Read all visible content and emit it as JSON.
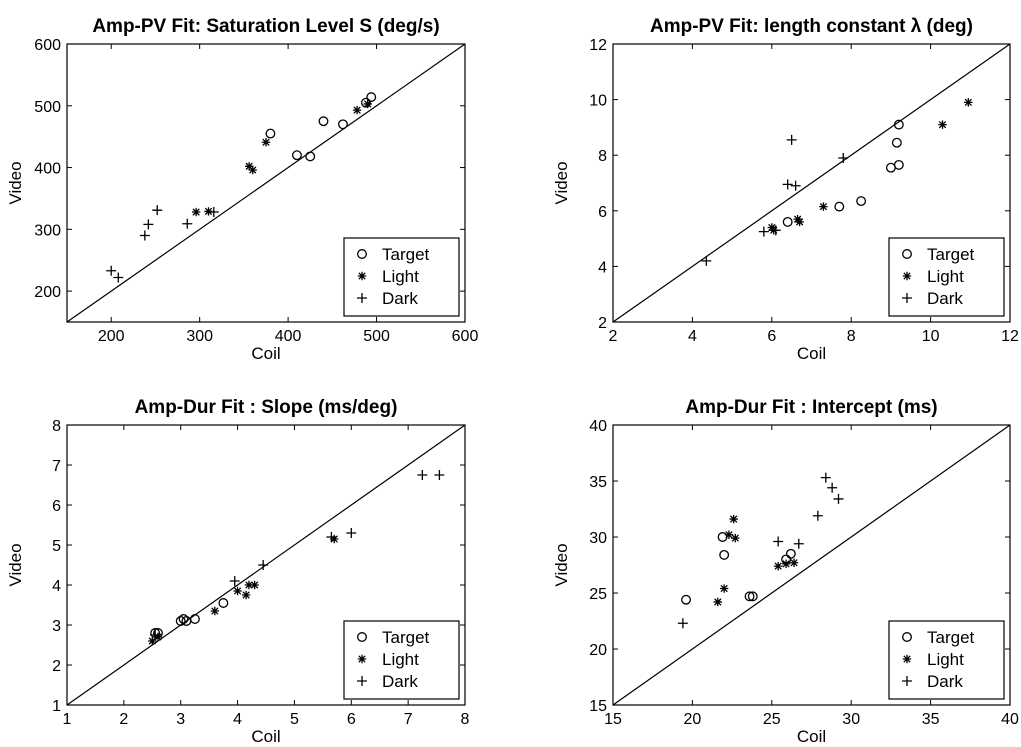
{
  "chart_data": [
    {
      "type": "scatter",
      "title": "Amp-PV Fit: Saturation Level S (deg/s)",
      "xlabel": "Coil",
      "ylabel": "Video",
      "xlim": [
        150,
        600
      ],
      "ylim": [
        150,
        600
      ],
      "xticks": [
        200,
        300,
        400,
        500,
        600
      ],
      "yticks": [
        200,
        300,
        400,
        500,
        600
      ],
      "identity_line": true,
      "legend_position": "bottom-right",
      "series": [
        {
          "name": "Target",
          "marker": "circle",
          "points": [
            [
              380,
              455
            ],
            [
              410,
              420
            ],
            [
              425,
              418
            ],
            [
              440,
              475
            ],
            [
              462,
              470
            ],
            [
              488,
              505
            ],
            [
              494,
              514
            ]
          ]
        },
        {
          "name": "Light",
          "marker": "star",
          "points": [
            [
              296,
              328
            ],
            [
              310,
              329
            ],
            [
              356,
              402
            ],
            [
              360,
              396
            ],
            [
              375,
              441
            ],
            [
              478,
              493
            ],
            [
              490,
              503
            ]
          ]
        },
        {
          "name": "Dark",
          "marker": "plus",
          "points": [
            [
              200,
              233
            ],
            [
              208,
              222
            ],
            [
              238,
              290
            ],
            [
              242,
              308
            ],
            [
              252,
              331
            ],
            [
              286,
              309
            ],
            [
              316,
              328
            ]
          ]
        }
      ]
    },
    {
      "type": "scatter",
      "title": "Amp-PV Fit: length constant λ (deg)",
      "xlabel": "Coil",
      "ylabel": "Video",
      "xlim": [
        2,
        12
      ],
      "ylim": [
        2,
        12
      ],
      "xticks": [
        2,
        4,
        6,
        8,
        10,
        12
      ],
      "yticks": [
        2,
        4,
        6,
        8,
        10,
        12
      ],
      "identity_line": true,
      "legend_position": "bottom-right",
      "series": [
        {
          "name": "Target",
          "marker": "circle",
          "points": [
            [
              6.4,
              5.6
            ],
            [
              7.7,
              6.15
            ],
            [
              8.25,
              6.35
            ],
            [
              9.0,
              7.55
            ],
            [
              9.2,
              7.65
            ],
            [
              9.15,
              8.45
            ],
            [
              9.2,
              9.1
            ]
          ]
        },
        {
          "name": "Light",
          "marker": "star",
          "points": [
            [
              6.0,
              5.4
            ],
            [
              6.05,
              5.3
            ],
            [
              6.65,
              5.7
            ],
            [
              6.7,
              5.6
            ],
            [
              7.3,
              6.15
            ],
            [
              10.3,
              9.1
            ],
            [
              10.95,
              9.9
            ]
          ]
        },
        {
          "name": "Dark",
          "marker": "plus",
          "points": [
            [
              4.35,
              4.2
            ],
            [
              5.8,
              5.25
            ],
            [
              6.1,
              5.3
            ],
            [
              6.4,
              6.95
            ],
            [
              6.6,
              6.9
            ],
            [
              6.5,
              8.55
            ],
            [
              7.8,
              7.9
            ]
          ]
        }
      ]
    },
    {
      "type": "scatter",
      "title": "Amp-Dur Fit : Slope (ms/deg)",
      "xlabel": "Coil",
      "ylabel": "Video",
      "xlim": [
        1,
        8
      ],
      "ylim": [
        1,
        8
      ],
      "xticks": [
        1,
        2,
        3,
        4,
        5,
        6,
        7,
        8
      ],
      "yticks": [
        1,
        2,
        3,
        4,
        5,
        6,
        7,
        8
      ],
      "identity_line": true,
      "legend_position": "bottom-right",
      "series": [
        {
          "name": "Target",
          "marker": "circle",
          "points": [
            [
              2.55,
              2.8
            ],
            [
              2.6,
              2.8
            ],
            [
              3.0,
              3.1
            ],
            [
              3.05,
              3.15
            ],
            [
              3.1,
              3.1
            ],
            [
              3.25,
              3.15
            ],
            [
              3.75,
              3.55
            ]
          ]
        },
        {
          "name": "Light",
          "marker": "star",
          "points": [
            [
              2.5,
              2.6
            ],
            [
              2.6,
              2.7
            ],
            [
              3.6,
              3.35
            ],
            [
              4.0,
              3.85
            ],
            [
              4.15,
              3.75
            ],
            [
              4.2,
              4.0
            ],
            [
              4.3,
              4.0
            ],
            [
              5.7,
              5.15
            ]
          ]
        },
        {
          "name": "Dark",
          "marker": "plus",
          "points": [
            [
              2.55,
              2.75
            ],
            [
              3.95,
              4.1
            ],
            [
              4.45,
              4.5
            ],
            [
              5.65,
              5.2
            ],
            [
              6.0,
              5.3
            ],
            [
              7.25,
              6.75
            ],
            [
              7.55,
              6.75
            ]
          ]
        }
      ]
    },
    {
      "type": "scatter",
      "title": "Amp-Dur Fit : Intercept (ms)",
      "xlabel": "Coil",
      "ylabel": "Video",
      "xlim": [
        15,
        40
      ],
      "ylim": [
        15,
        40
      ],
      "xticks": [
        15,
        20,
        25,
        30,
        35,
        40
      ],
      "yticks": [
        15,
        20,
        25,
        30,
        35,
        40
      ],
      "identity_line": true,
      "legend_position": "bottom-right",
      "series": [
        {
          "name": "Target",
          "marker": "circle",
          "points": [
            [
              19.6,
              24.4
            ],
            [
              22.0,
              28.4
            ],
            [
              21.9,
              30.0
            ],
            [
              23.6,
              24.7
            ],
            [
              23.8,
              24.7
            ],
            [
              25.9,
              28.0
            ],
            [
              26.2,
              28.5
            ]
          ]
        },
        {
          "name": "Light",
          "marker": "star",
          "points": [
            [
              21.6,
              24.2
            ],
            [
              22.0,
              25.4
            ],
            [
              22.3,
              30.2
            ],
            [
              22.6,
              31.6
            ],
            [
              22.7,
              29.9
            ],
            [
              25.4,
              27.4
            ],
            [
              25.9,
              27.6
            ],
            [
              26.4,
              27.7
            ]
          ]
        },
        {
          "name": "Dark",
          "marker": "plus",
          "points": [
            [
              19.4,
              22.3
            ],
            [
              25.4,
              29.6
            ],
            [
              26.7,
              29.4
            ],
            [
              27.9,
              31.9
            ],
            [
              28.4,
              35.3
            ],
            [
              28.8,
              34.4
            ],
            [
              29.2,
              33.4
            ]
          ]
        }
      ]
    }
  ]
}
